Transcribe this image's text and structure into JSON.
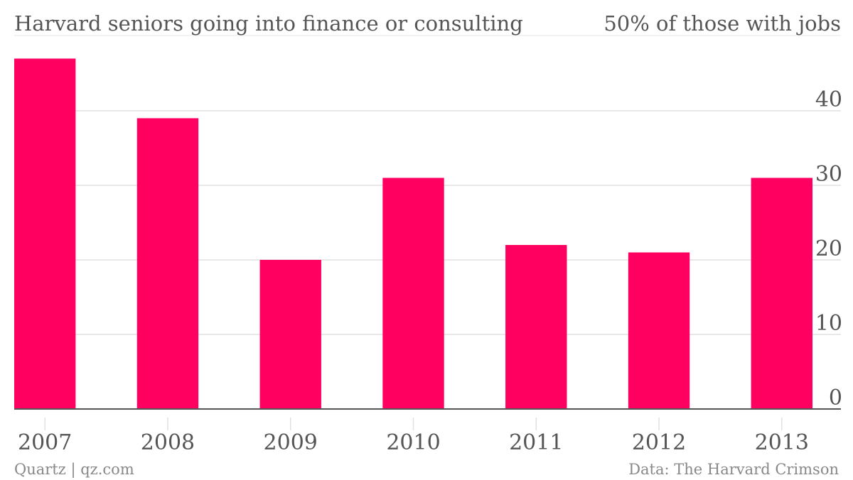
{
  "header": {
    "title": "Harvard seniors going into finance or consulting",
    "note": "50% of those with jobs"
  },
  "footer": {
    "credit": "Quartz | qz.com",
    "source": "Data: The Harvard Crimson"
  },
  "colors": {
    "bar": "#ff0060",
    "grid": "#e0e0e0",
    "axis": "#555555",
    "text": "#555555",
    "footer_text": "#888888"
  },
  "chart_data": {
    "type": "bar",
    "title": "Harvard seniors going into finance or consulting",
    "subtitle": "50% of those with jobs",
    "categories": [
      "2007",
      "2008",
      "2009",
      "2010",
      "2011",
      "2012",
      "2013"
    ],
    "values": [
      47,
      39,
      20,
      31,
      22,
      21,
      31
    ],
    "ylim": [
      0,
      50
    ],
    "yticks": [
      0,
      10,
      20,
      30,
      40
    ],
    "y_axis_side": "right",
    "grid": true,
    "legend": "none"
  }
}
